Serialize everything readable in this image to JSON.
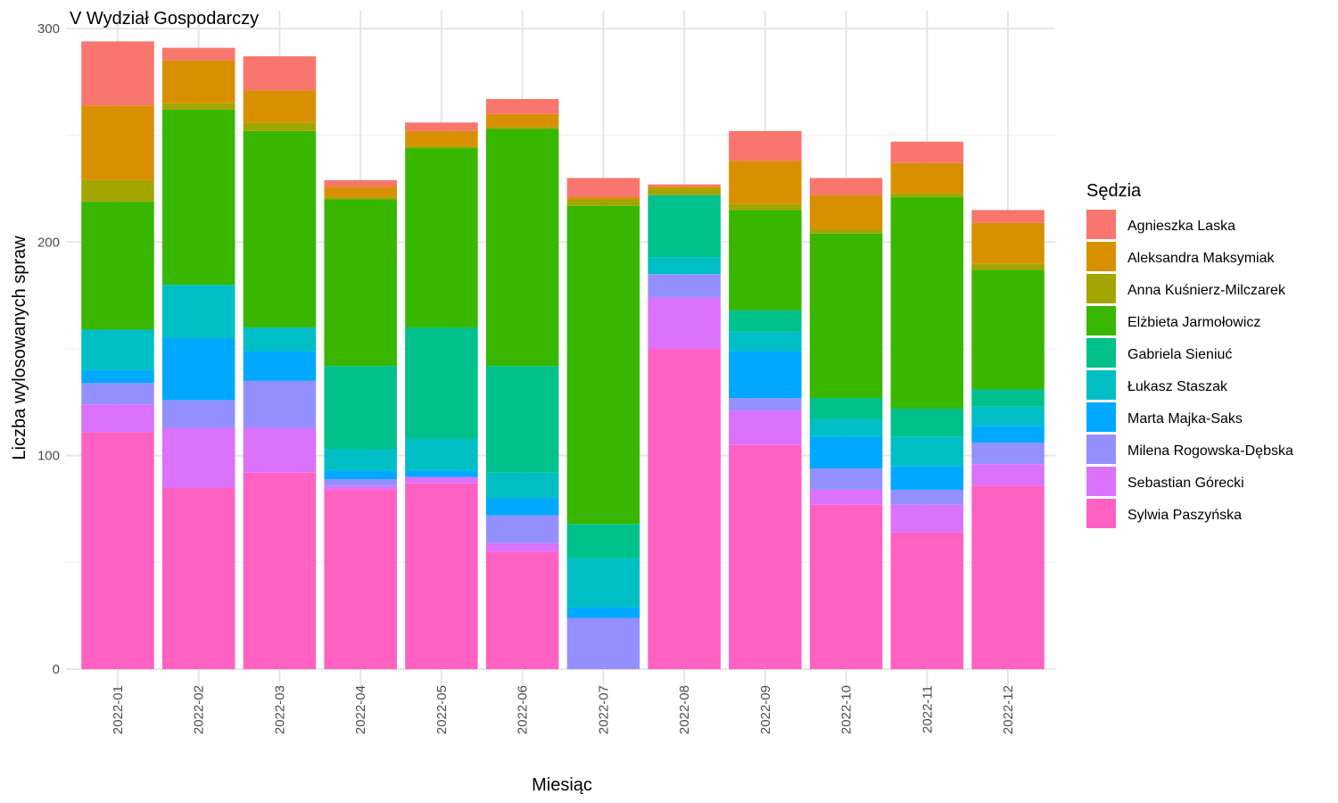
{
  "chart_data": {
    "type": "bar",
    "stacked": true,
    "title": "V Wydział Gospodarczy",
    "xlabel": "Miesiąc",
    "ylabel": "Liczba wylosowanych spraw",
    "ylim": [
      0,
      300
    ],
    "yticks": [
      0,
      100,
      200,
      300
    ],
    "grid": true,
    "legend_position": "right",
    "legend_title": "Sędzia",
    "categories": [
      "2022-01",
      "2022-02",
      "2022-03",
      "2022-04",
      "2022-05",
      "2022-06",
      "2022-07",
      "2022-08",
      "2022-09",
      "2022-10",
      "2022-11",
      "2022-12"
    ],
    "series": [
      {
        "name": "Sylwia Paszyńska",
        "color": "#FF61C3",
        "values": [
          111,
          85,
          92,
          84,
          87,
          55,
          0,
          150,
          105,
          77,
          64,
          86
        ]
      },
      {
        "name": "Sebastian Górecki",
        "color": "#DB72FB",
        "values": [
          13,
          28,
          21,
          2,
          3,
          4,
          0,
          24,
          16,
          7,
          13,
          10
        ]
      },
      {
        "name": "Milena Rogowska-Dębska",
        "color": "#9590FF",
        "values": [
          10,
          13,
          22,
          3,
          0,
          13,
          24,
          11,
          6,
          10,
          7,
          10
        ]
      },
      {
        "name": "Marta Majka-Saks",
        "color": "#00A9FF",
        "values": [
          6,
          29,
          14,
          4,
          3,
          8,
          5,
          0,
          22,
          15,
          11,
          8
        ]
      },
      {
        "name": "Łukasz Staszak",
        "color": "#00BFC4",
        "values": [
          19,
          25,
          11,
          10,
          15,
          12,
          23,
          8,
          9,
          8,
          14,
          9
        ]
      },
      {
        "name": "Gabriela Sieniuć",
        "color": "#00C08B",
        "values": [
          0,
          0,
          0,
          39,
          52,
          50,
          16,
          29,
          10,
          10,
          13,
          8
        ]
      },
      {
        "name": "Elżbieta Jarmołowicz",
        "color": "#39B600",
        "values": [
          60,
          82,
          92,
          78,
          84,
          111,
          149,
          0,
          47,
          77,
          99,
          56
        ]
      },
      {
        "name": "Anna Kuśnierz-Milczarek",
        "color": "#A3A500",
        "values": [
          10,
          3,
          4,
          1,
          1,
          1,
          3,
          3,
          3,
          2,
          2,
          3
        ]
      },
      {
        "name": "Aleksandra Maksymiak",
        "color": "#D89000",
        "values": [
          35,
          20,
          15,
          5,
          7,
          6,
          1,
          1,
          20,
          16,
          14,
          19
        ]
      },
      {
        "name": "Agnieszka Laska",
        "color": "#F8766D",
        "values": [
          30,
          6,
          16,
          3,
          4,
          7,
          9,
          1,
          14,
          8,
          10,
          6
        ]
      }
    ]
  }
}
